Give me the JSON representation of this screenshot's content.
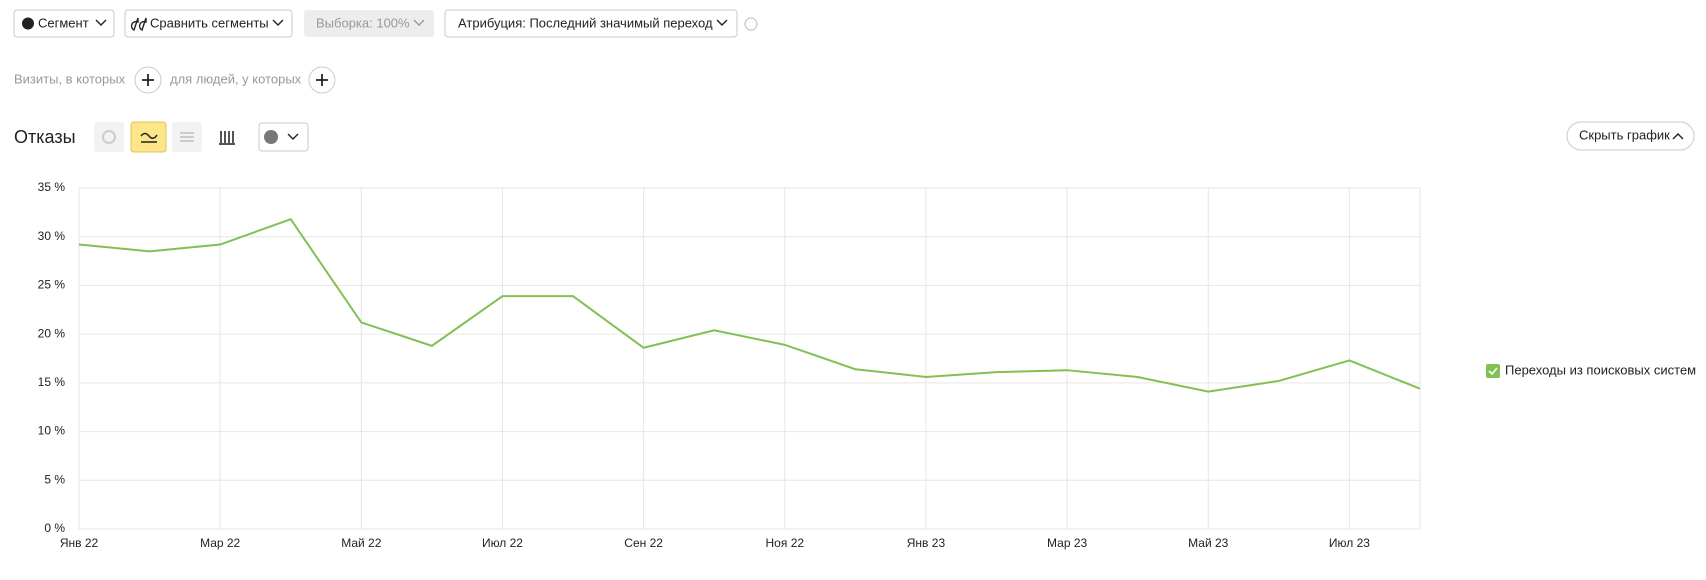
{
  "toolbar": {
    "segment": "Сегмент",
    "compare": "Сравнить сегменты",
    "sample": "Выборка: 100%",
    "attribution": "Атрибуция: Последний значимый переход"
  },
  "filters": {
    "visits": "Визиты, в которых",
    "people": "для людей, у которых"
  },
  "hide_chart": "Скрыть график",
  "chart_data": {
    "type": "line",
    "title": "Отказы",
    "categories": [
      "Янв 22",
      null,
      "Мар 22",
      null,
      "Май 22",
      null,
      "Июл 22",
      null,
      "Сен 22",
      null,
      "Ноя 22",
      null,
      "Янв 23",
      null,
      "Мар 23",
      null,
      "Май 23",
      null,
      "Июл 23",
      null
    ],
    "series": [
      {
        "name": "Переходы из поисковых систем",
        "color": "#82c053",
        "values": [
          29.2,
          28.5,
          29.2,
          31.8,
          21.2,
          18.8,
          23.9,
          23.9,
          18.6,
          20.4,
          18.9,
          16.4,
          15.6,
          16.1,
          16.3,
          15.6,
          14.1,
          15.2,
          17.3,
          14.4
        ]
      }
    ],
    "ylim": [
      0,
      35
    ],
    "yticks": [
      {
        "value": 0,
        "label": "0 %"
      },
      {
        "value": 5,
        "label": "5 %"
      },
      {
        "value": 10,
        "label": "10 %"
      },
      {
        "value": 15,
        "label": "15 %"
      },
      {
        "value": 20,
        "label": "20 %"
      },
      {
        "value": 25,
        "label": "25 %"
      },
      {
        "value": 30,
        "label": "30 %"
      },
      {
        "value": 35,
        "label": "35 %"
      }
    ],
    "grid": true,
    "legend": "right"
  }
}
